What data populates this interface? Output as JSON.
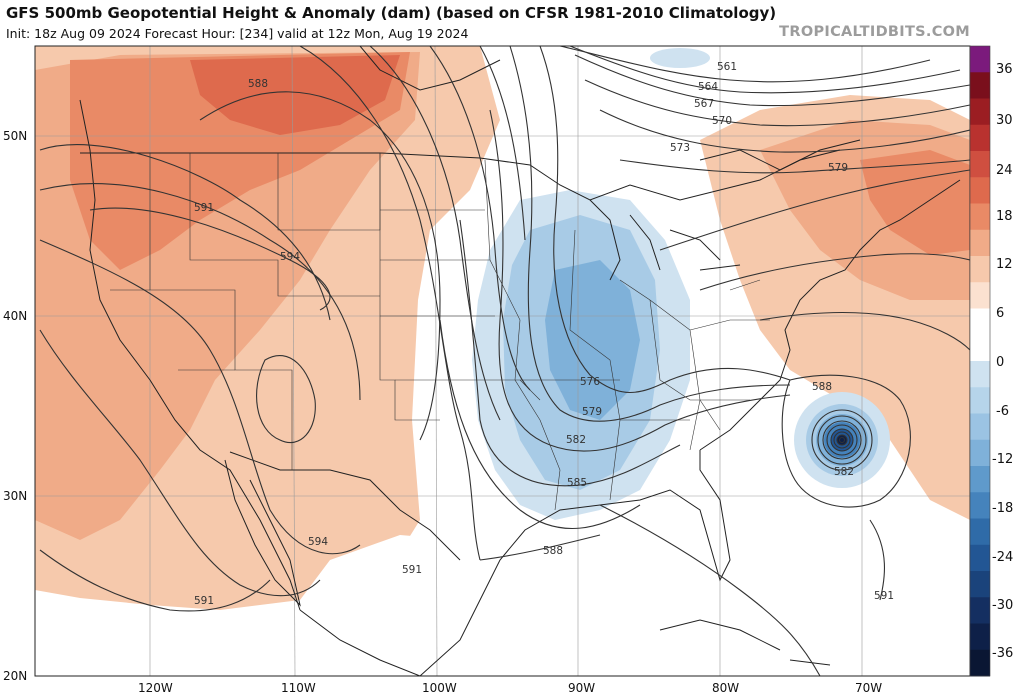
{
  "header": {
    "title": "GFS 500mb Geopotential Height & Anomaly (dam) (based on CFSR 1981-2010 Climatology)",
    "subtitle": "Init: 18z Aug 09 2024   Forecast Hour: [234]   valid at 12z Mon, Aug 19 2024",
    "brand": "TROPICALTIDBITS.COM"
  },
  "map": {
    "lat_labels": [
      "50N",
      "40N",
      "30N",
      "20N"
    ],
    "lon_labels": [
      "120W",
      "110W",
      "100W",
      "90W",
      "80W",
      "70W"
    ],
    "contour_labels": [
      "588",
      "591",
      "594",
      "594",
      "591",
      "594",
      "591",
      "561",
      "564",
      "567",
      "570",
      "573",
      "579",
      "576",
      "579",
      "582",
      "585",
      "588",
      "588",
      "582",
      "591"
    ],
    "colors": {
      "pos_weak": "#f6c9ac",
      "pos_mid": "#f0ab88",
      "pos_strong": "#e98a66",
      "pos_max": "#de6a4d",
      "neg_weak": "#cfe2f0",
      "neg_mid": "#a8cbe6",
      "neg_strong": "#7fb1d9"
    }
  },
  "colorbar": {
    "labels": [
      "36",
      "30",
      "24",
      "18",
      "12",
      "6",
      "0",
      "-6",
      "-12",
      "-18",
      "-24",
      "-30",
      "-36"
    ],
    "colors": [
      "#7b1a7c",
      "#7a0f1c",
      "#9b1d22",
      "#b9322f",
      "#cf4f40",
      "#de6a4d",
      "#e98a66",
      "#f0ab88",
      "#f6c9ac",
      "#fbe1d0",
      "#ffffff",
      "#ffffff",
      "#cfe2f0",
      "#b6d4ea",
      "#9bc3e3",
      "#7fb1d9",
      "#5f9acb",
      "#4583bc",
      "#2f6ba8",
      "#225694",
      "#1a437b",
      "#142f61",
      "#0e2048",
      "#0a1633"
    ]
  }
}
